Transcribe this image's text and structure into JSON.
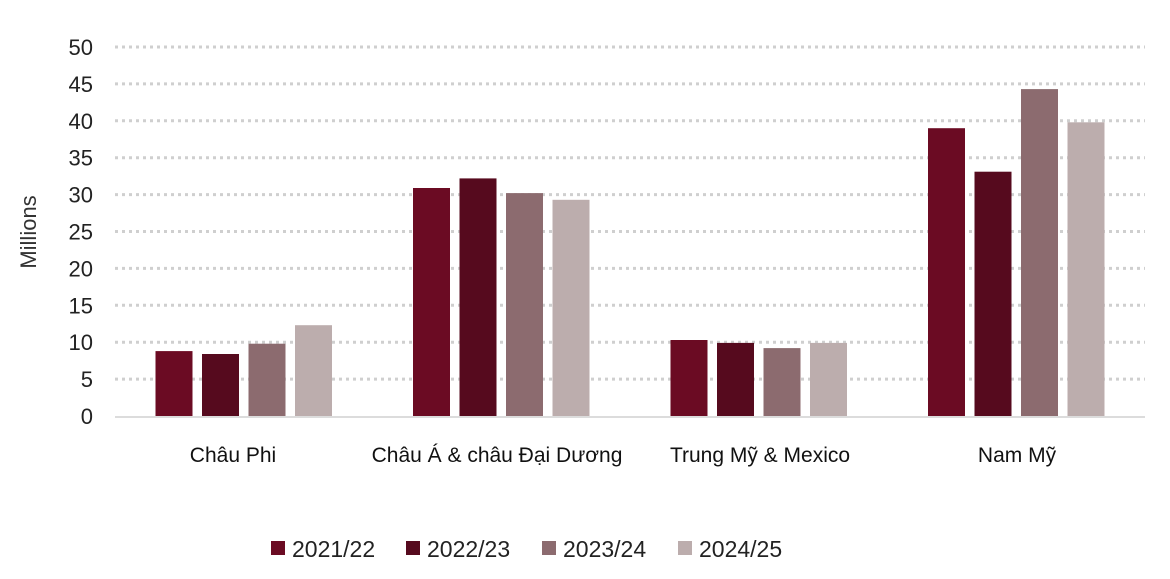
{
  "chart_data": {
    "type": "bar",
    "categories": [
      "Châu Phi",
      "Châu Á & châu Đại Dương",
      "Trung Mỹ & Mexico",
      "Nam Mỹ"
    ],
    "series": [
      {
        "name": "2021/22",
        "color": "#6b0b23",
        "values": [
          8.8,
          30.9,
          10.3,
          39.0
        ]
      },
      {
        "name": "2022/23",
        "color": "#560a1e",
        "values": [
          8.4,
          32.2,
          9.9,
          33.1
        ]
      },
      {
        "name": "2023/24",
        "color": "#8c6b6f",
        "values": [
          9.8,
          30.2,
          9.2,
          44.3
        ]
      },
      {
        "name": "2024/25",
        "color": "#bcadad",
        "values": [
          12.3,
          29.3,
          9.9,
          39.8
        ]
      }
    ],
    "ylabel": "Millions",
    "xlabel": "",
    "ylim": [
      0,
      50
    ],
    "yticks": [
      0,
      5,
      10,
      15,
      20,
      25,
      30,
      35,
      40,
      45,
      50
    ],
    "grid": true,
    "legend_position": "bottom"
  }
}
